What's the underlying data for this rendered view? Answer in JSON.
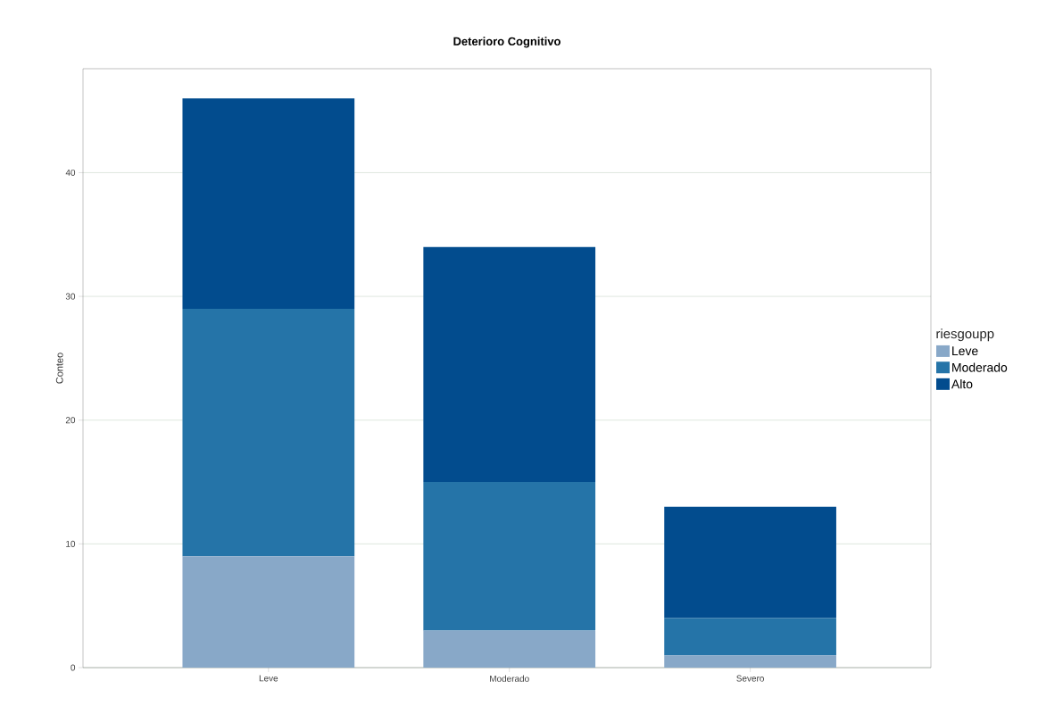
{
  "chart_data": {
    "type": "bar",
    "title": "Deterioro Cognitivo",
    "ylabel": "Conteo",
    "legend_title": "riesgoupp",
    "categories": [
      "Leve",
      "Moderado",
      "Severo"
    ],
    "series": [
      {
        "name": "Leve",
        "color": "#88a8c8",
        "values": [
          9,
          3,
          1
        ]
      },
      {
        "name": "Moderado",
        "color": "#2574a8",
        "values": [
          20,
          12,
          3
        ]
      },
      {
        "name": "Alto",
        "color": "#024c8e",
        "values": [
          17,
          19,
          9
        ]
      }
    ],
    "stacked": true,
    "ylim": [
      0,
      48.4
    ],
    "yticks": [
      0,
      10,
      20,
      30,
      40
    ],
    "grid": "y",
    "legend": "right"
  }
}
